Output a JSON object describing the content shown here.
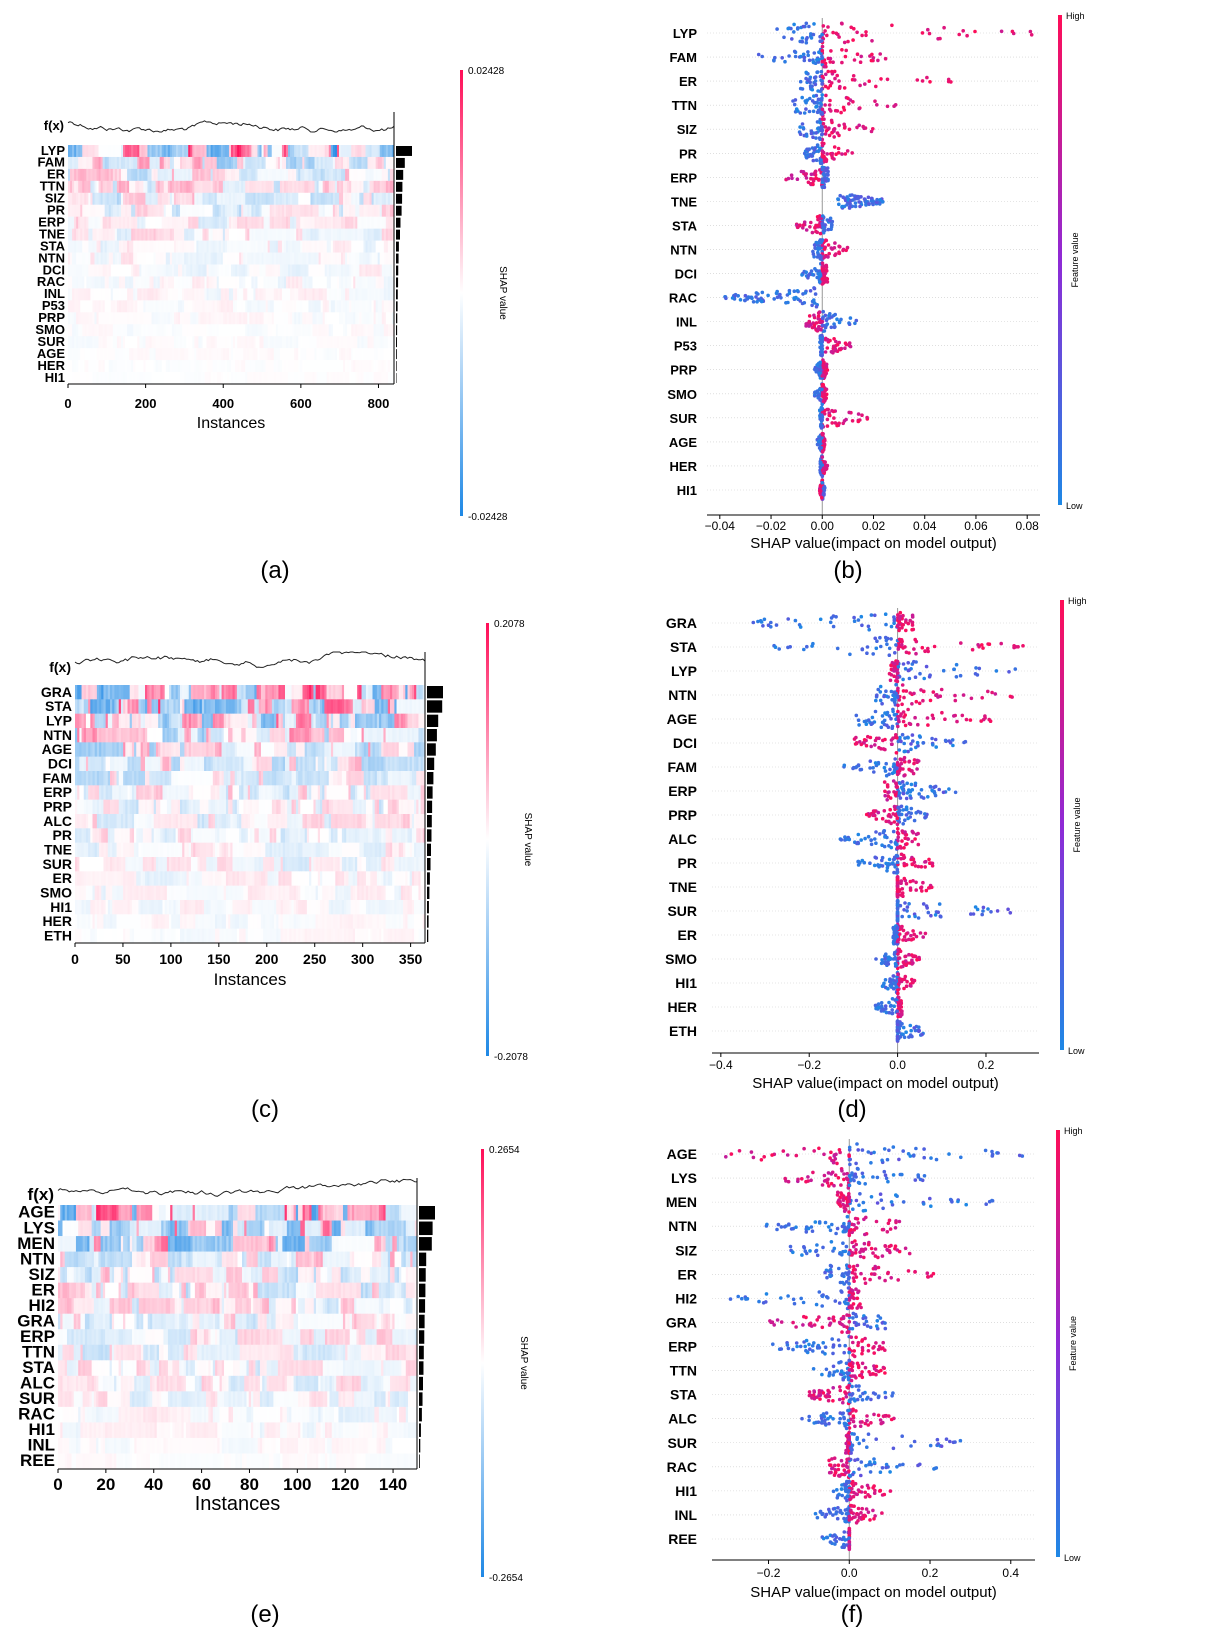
{
  "axis_label_instances": "Instances",
  "axis_label_shap": "SHAP value(impact on model output)",
  "colorbar_label_shap": "SHAP value",
  "colorbar_label_feature": "Feature value",
  "colorbar_high": "High",
  "colorbar_low": "Low",
  "fx_label": "f(x)",
  "colors": {
    "red": "#ff0d57",
    "blue": "#1e88e5",
    "purple": "#8f2ad6"
  },
  "chart_data": [
    {
      "id": "a",
      "type": "heatmap",
      "caption": "(a)",
      "fonts": "serif",
      "features": [
        "LYP",
        "FAM",
        "ER",
        "TTN",
        "SIZ",
        "PR",
        "ERP",
        "TNE",
        "STA",
        "NTN",
        "DCI",
        "RAC",
        "INL",
        "P53",
        "PRP",
        "SMO",
        "SUR",
        "AGE",
        "HER",
        "HI1"
      ],
      "importance": [
        1.0,
        0.55,
        0.45,
        0.4,
        0.38,
        0.35,
        0.28,
        0.25,
        0.18,
        0.16,
        0.14,
        0.13,
        0.11,
        0.1,
        0.08,
        0.07,
        0.06,
        0.05,
        0.04,
        0.03
      ],
      "xlim": [
        0,
        840
      ],
      "xticks": [
        "0",
        "200",
        "400",
        "600",
        "800"
      ],
      "xtick_values": [
        0,
        200,
        400,
        600,
        800
      ],
      "colorbar_max": "0.02428",
      "colorbar_min": "-0.02428",
      "xlabel": "Instances"
    },
    {
      "id": "b",
      "type": "scatter",
      "caption": "(b)",
      "fonts": "serif",
      "features": [
        "LYP",
        "FAM",
        "ER",
        "TTN",
        "SIZ",
        "PR",
        "ERP",
        "TNE",
        "STA",
        "NTN",
        "DCI",
        "RAC",
        "INL",
        "P53",
        "PRP",
        "SMO",
        "SUR",
        "AGE",
        "HER",
        "HI1"
      ],
      "xlim": [
        -0.045,
        0.085
      ],
      "xticks": [
        "−0.04",
        "−0.02",
        "0.00",
        "0.02",
        "0.04",
        "0.06",
        "0.08"
      ],
      "xtick_values": [
        -0.04,
        -0.02,
        0,
        0.02,
        0.04,
        0.06,
        0.08
      ],
      "ranges": [
        [
          -0.02,
          0.082
        ],
        [
          -0.027,
          0.025
        ],
        [
          -0.01,
          0.051
        ],
        [
          -0.012,
          0.029
        ],
        [
          -0.009,
          0.02
        ],
        [
          -0.007,
          0.012
        ],
        [
          -0.015,
          0.003
        ],
        [
          0.006,
          0.024
        ],
        [
          -0.01,
          0.004
        ],
        [
          -0.004,
          0.01
        ],
        [
          -0.008,
          0.002
        ],
        [
          -0.038,
          -0.001
        ],
        [
          -0.007,
          0.014
        ],
        [
          -0.001,
          0.012
        ],
        [
          -0.003,
          0.002
        ],
        [
          -0.003,
          0.002
        ],
        [
          -0.001,
          0.018
        ],
        [
          -0.002,
          0.001
        ],
        [
          -0.001,
          0.002
        ],
        [
          -0.001,
          0.001
        ]
      ],
      "xlabel": "SHAP value(impact on model output)"
    },
    {
      "id": "c",
      "type": "heatmap",
      "caption": "(c)",
      "fonts": "sans",
      "features": [
        "GRA",
        "STA",
        "LYP",
        "NTN",
        "AGE",
        "DCI",
        "FAM",
        "ERP",
        "PRP",
        "ALC",
        "PR",
        "TNE",
        "SUR",
        "ER",
        "SMO",
        "HI1",
        "HER",
        "ETH"
      ],
      "importance": [
        1.0,
        0.95,
        0.7,
        0.62,
        0.55,
        0.45,
        0.4,
        0.35,
        0.32,
        0.3,
        0.28,
        0.25,
        0.22,
        0.18,
        0.15,
        0.12,
        0.1,
        0.08
      ],
      "xlim": [
        0,
        365
      ],
      "xticks": [
        "0",
        "50",
        "100",
        "150",
        "200",
        "250",
        "300",
        "350"
      ],
      "xtick_values": [
        0,
        50,
        100,
        150,
        200,
        250,
        300,
        350
      ],
      "colorbar_max": "0.2078",
      "colorbar_min": "-0.2078",
      "xlabel": "Instances"
    },
    {
      "id": "d",
      "type": "scatter",
      "caption": "(d)",
      "fonts": "sans",
      "features": [
        "GRA",
        "STA",
        "LYP",
        "NTN",
        "AGE",
        "DCI",
        "FAM",
        "ERP",
        "PRP",
        "ALC",
        "PR",
        "TNE",
        "SUR",
        "ER",
        "SMO",
        "HI1",
        "HER",
        "ETH"
      ],
      "xlim": [
        -0.42,
        0.32
      ],
      "xticks": [
        "−0.4",
        "−0.2",
        "0.0",
        "0.2"
      ],
      "xtick_values": [
        -0.4,
        -0.2,
        0,
        0.2
      ],
      "ranges": [
        [
          -0.38,
          0.04
        ],
        [
          -0.28,
          0.29
        ],
        [
          -0.02,
          0.27
        ],
        [
          -0.05,
          0.26
        ],
        [
          -0.1,
          0.22
        ],
        [
          -0.1,
          0.16
        ],
        [
          -0.13,
          0.05
        ],
        [
          -0.03,
          0.15
        ],
        [
          -0.07,
          0.07
        ],
        [
          -0.13,
          0.06
        ],
        [
          -0.09,
          0.08
        ],
        [
          0,
          0.08
        ],
        [
          0,
          0.26
        ],
        [
          -0.01,
          0.07
        ],
        [
          -0.05,
          0.05
        ],
        [
          -0.04,
          0.04
        ],
        [
          -0.05,
          0.01
        ],
        [
          0,
          0.07
        ]
      ],
      "xlabel": "SHAP value(impact on model output)"
    },
    {
      "id": "e",
      "type": "heatmap",
      "caption": "(e)",
      "fonts": "sans-bold",
      "features": [
        "AGE",
        "LYS",
        "MEN",
        "NTN",
        "SIZ",
        "ER",
        "HI2",
        "GRA",
        "ERP",
        "TTN",
        "STA",
        "ALC",
        "SUR",
        "RAC",
        "HI1",
        "INL",
        "REE"
      ],
      "importance": [
        1.0,
        0.85,
        0.8,
        0.45,
        0.42,
        0.4,
        0.38,
        0.35,
        0.33,
        0.3,
        0.28,
        0.25,
        0.22,
        0.18,
        0.12,
        0.08,
        0.05
      ],
      "xlim": [
        0,
        150
      ],
      "xticks": [
        "0",
        "20",
        "40",
        "60",
        "80",
        "100",
        "120",
        "140"
      ],
      "xtick_values": [
        0,
        20,
        40,
        60,
        80,
        100,
        120,
        140
      ],
      "colorbar_max": "0.2654",
      "colorbar_min": "-0.2654",
      "xlabel": "Instances"
    },
    {
      "id": "f",
      "type": "scatter",
      "caption": "(f)",
      "fonts": "sans",
      "features": [
        "AGE",
        "LYS",
        "MEN",
        "NTN",
        "SIZ",
        "ER",
        "HI2",
        "GRA",
        "ERP",
        "TTN",
        "STA",
        "ALC",
        "SUR",
        "RAC",
        "HI1",
        "INL",
        "REE"
      ],
      "xlim": [
        -0.34,
        0.46
      ],
      "xticks": [
        "−0.2",
        "0.0",
        "0.2",
        "0.4"
      ],
      "xtick_values": [
        -0.2,
        0,
        0.2,
        0.4
      ],
      "ranges": [
        [
          -0.31,
          0.43
        ],
        [
          -0.18,
          0.19
        ],
        [
          -0.03,
          0.37
        ],
        [
          -0.22,
          0.13
        ],
        [
          -0.15,
          0.18
        ],
        [
          -0.06,
          0.22
        ],
        [
          -0.3,
          0.03
        ],
        [
          -0.2,
          0.09
        ],
        [
          -0.2,
          0.09
        ],
        [
          -0.1,
          0.09
        ],
        [
          -0.1,
          0.12
        ],
        [
          -0.12,
          0.12
        ],
        [
          -0.01,
          0.3
        ],
        [
          -0.05,
          0.22
        ],
        [
          -0.04,
          0.11
        ],
        [
          -0.09,
          0.09
        ],
        [
          -0.07,
          0
        ]
      ],
      "xlabel": "SHAP value(impact on model output)"
    }
  ]
}
